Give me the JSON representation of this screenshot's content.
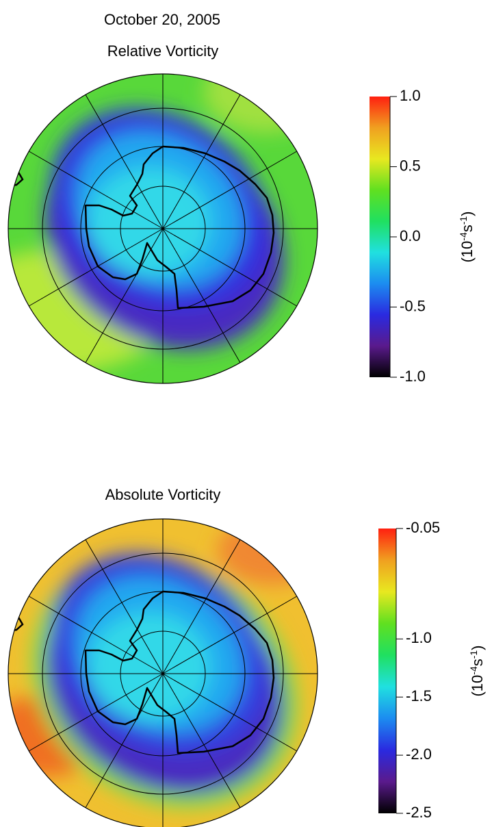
{
  "title": "October 20, 2005",
  "chart_data": [
    {
      "type": "polar-map",
      "title": "Relative Vorticity",
      "colorbar_lim": [
        -1.0,
        1.0
      ],
      "colorbar_ticks": [
        {
          "value": -1.0,
          "label": "-1.0"
        },
        {
          "value": -0.5,
          "label": "-0.5"
        },
        {
          "value": 0.0,
          "label": "0.0"
        },
        {
          "value": 0.5,
          "label": "0.5"
        },
        {
          "value": 1.0,
          "label": "1.0"
        }
      ],
      "unit": [
        "(10",
        "-4",
        "s",
        "-1",
        ")"
      ],
      "colormap": [
        "#000000",
        "#5a1a8c",
        "#2a2ae0",
        "#1c8cf0",
        "#20e0e0",
        "#20e060",
        "#60e020",
        "#e8e820",
        "#f0a020",
        "#ff2010"
      ]
    },
    {
      "type": "polar-map",
      "title": "Absolute Vorticity",
      "colorbar_lim": [
        -2.5,
        -0.05
      ],
      "colorbar_ticks": [
        {
          "value": -2.5,
          "label": "-2.5"
        },
        {
          "value": -2.0,
          "label": "-2.0"
        },
        {
          "value": -1.5,
          "label": "-1.5"
        },
        {
          "value": -1.0,
          "label": "-1.0"
        },
        {
          "value": -0.05,
          "label": "-0.05"
        }
      ],
      "unit": [
        "(10",
        "-4",
        "s",
        "-1",
        ")"
      ],
      "colormap": [
        "#000000",
        "#5a1a8c",
        "#2a2ae0",
        "#1c8cf0",
        "#20e0e0",
        "#20e060",
        "#60e020",
        "#e8e820",
        "#f0a020",
        "#ff2010"
      ]
    }
  ]
}
